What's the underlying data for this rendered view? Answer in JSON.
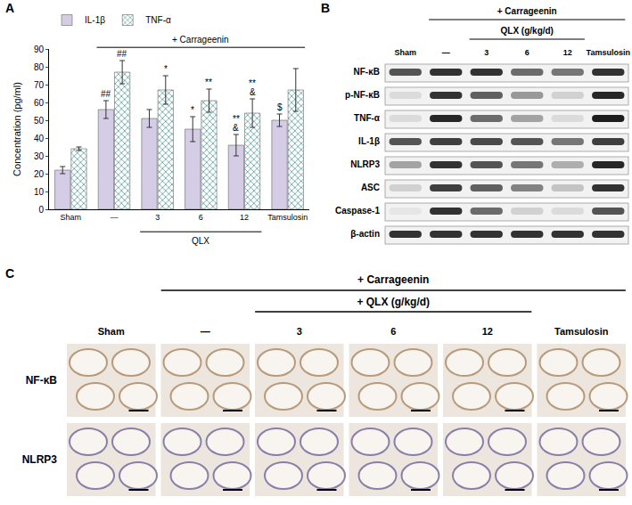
{
  "panel_labels": [
    "A",
    "B",
    "C"
  ],
  "chart_data": {
    "type": "bar",
    "y_label": "Concentration (pg/ml)",
    "categories": [
      "Sham",
      "—",
      "3",
      "6",
      "12",
      "Tamsulosin"
    ],
    "series": [
      {
        "name": "IL-1β",
        "color": "#d5cde6",
        "values": [
          22,
          56,
          51,
          45,
          36,
          50
        ],
        "errors": [
          2,
          5,
          5,
          7,
          6,
          3.5
        ]
      },
      {
        "name": "TNF-α",
        "color": "#7cc3c3",
        "values": [
          34,
          77,
          67,
          61,
          54,
          67
        ],
        "errors": [
          1,
          6.5,
          8,
          6.5,
          8,
          12
        ]
      }
    ],
    "ylim": [
      0,
      90
    ],
    "yticks": [
      0,
      10,
      20,
      30,
      40,
      50,
      60,
      70,
      80,
      90
    ],
    "grid": false,
    "legend": "top left",
    "treatment_label": {
      "text": "+ Carrageenin",
      "from": "—",
      "to": "Tamsulosin"
    },
    "dose_label": {
      "text": "QLX",
      "from": "3",
      "to": "12"
    },
    "significance": [
      {
        "category": "—",
        "series": "IL-1β",
        "marks": [
          "##"
        ]
      },
      {
        "category": "—",
        "series": "TNF-α",
        "marks": [
          "##"
        ]
      },
      {
        "category": "3",
        "series": "TNF-α",
        "marks": [
          "*"
        ]
      },
      {
        "category": "6",
        "series": "IL-1β",
        "marks": [
          "*"
        ]
      },
      {
        "category": "6",
        "series": "TNF-α",
        "marks": [
          "**"
        ]
      },
      {
        "category": "12",
        "series": "IL-1β",
        "marks": [
          "&",
          "**"
        ]
      },
      {
        "category": "12",
        "series": "TNF-α",
        "marks": [
          "&",
          "**"
        ]
      },
      {
        "category": "Tamsulosin",
        "series": "IL-1β",
        "marks": [
          "$"
        ]
      }
    ]
  },
  "western_blot": {
    "columns": [
      "Sham",
      "—",
      "3",
      "6",
      "12",
      "Tamsulosin"
    ],
    "treatment_label": {
      "text": "+ Carrageenin",
      "from": "—",
      "to": "Tamsulosin"
    },
    "dose_label": {
      "text": "QLX (g/kg/d)",
      "from": "3",
      "to": "12"
    },
    "rows": [
      {
        "label": "NF-κB",
        "band_intensity": [
          0.7,
          0.85,
          0.85,
          0.6,
          0.55,
          0.85
        ]
      },
      {
        "label": "p-NF-κB",
        "band_intensity": [
          0.1,
          0.85,
          0.65,
          0.4,
          0.15,
          0.9
        ]
      },
      {
        "label": "TNF-α",
        "band_intensity": [
          0.1,
          0.9,
          0.6,
          0.35,
          0.1,
          0.95
        ]
      },
      {
        "label": "IL-1β",
        "band_intensity": [
          0.7,
          0.8,
          0.75,
          0.7,
          0.55,
          0.8
        ]
      },
      {
        "label": "NLRP3",
        "band_intensity": [
          0.35,
          0.85,
          0.7,
          0.55,
          0.3,
          0.9
        ]
      },
      {
        "label": "ASC",
        "band_intensity": [
          0.15,
          0.8,
          0.65,
          0.5,
          0.2,
          0.85
        ]
      },
      {
        "label": "Caspase-1",
        "band_intensity": [
          0.05,
          0.85,
          0.6,
          0.15,
          0.1,
          0.7
        ]
      },
      {
        "label": "β-actin",
        "band_intensity": [
          0.85,
          0.85,
          0.85,
          0.85,
          0.85,
          0.85
        ]
      }
    ]
  },
  "histology": {
    "columns": [
      "Sham",
      "—",
      "3",
      "6",
      "12",
      "Tamsulosin"
    ],
    "treatment_label": {
      "text": "+ Carrageenin",
      "from": "—",
      "to": "Tamsulosin"
    },
    "dose_label": {
      "text": "+ QLX (g/kg/d)",
      "from": "3",
      "to": "12"
    },
    "rows": [
      "NF-κB",
      "NLRP3"
    ]
  }
}
